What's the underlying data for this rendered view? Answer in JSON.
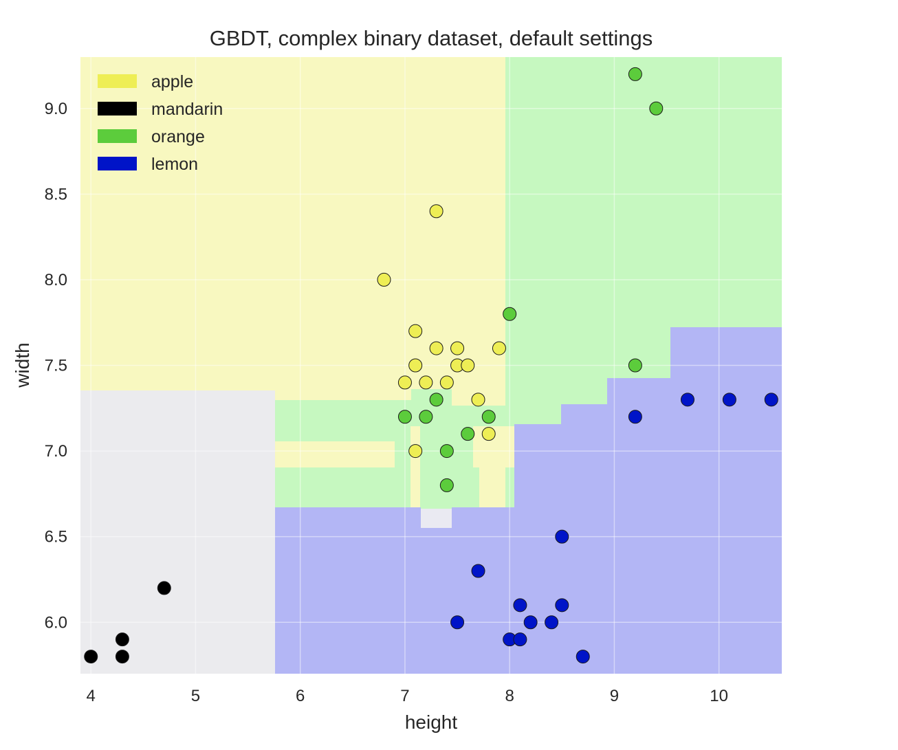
{
  "chart_data": {
    "type": "scatter",
    "title": "GBDT, complex binary dataset, default settings",
    "xlabel": "height",
    "ylabel": "width",
    "xlim": [
      3.9,
      10.6
    ],
    "ylim": [
      5.7,
      9.3
    ],
    "xticks": [
      "4",
      "5",
      "6",
      "7",
      "8",
      "9",
      "10"
    ],
    "yticks": [
      "6.0",
      "6.5",
      "7.0",
      "7.5",
      "8.0",
      "8.5",
      "9.0"
    ],
    "grid": true,
    "legend_position": "top-left",
    "background_regions": "decision regions of the classifier",
    "series": [
      {
        "name": "apple",
        "color": "#eeee55",
        "points": [
          [
            6.8,
            8.0
          ],
          [
            7.3,
            8.4
          ],
          [
            7.1,
            7.7
          ],
          [
            7.1,
            7.5
          ],
          [
            7.0,
            7.4
          ],
          [
            7.2,
            7.4
          ],
          [
            7.3,
            7.6
          ],
          [
            7.4,
            7.4
          ],
          [
            7.5,
            7.6
          ],
          [
            7.5,
            7.5
          ],
          [
            7.6,
            7.5
          ],
          [
            7.7,
            7.3
          ],
          [
            7.9,
            7.6
          ],
          [
            7.8,
            7.1
          ],
          [
            7.1,
            7.0
          ]
        ]
      },
      {
        "name": "mandarin",
        "color": "#000000",
        "points": [
          [
            4.0,
            5.8
          ],
          [
            4.3,
            5.8
          ],
          [
            4.3,
            5.9
          ],
          [
            4.7,
            6.2
          ]
        ]
      },
      {
        "name": "orange",
        "color": "#5ccc3c",
        "points": [
          [
            9.2,
            9.2
          ],
          [
            9.4,
            9.0
          ],
          [
            8.0,
            7.8
          ],
          [
            9.2,
            7.5
          ],
          [
            7.3,
            7.3
          ],
          [
            7.0,
            7.2
          ],
          [
            7.2,
            7.2
          ],
          [
            7.8,
            7.2
          ],
          [
            7.6,
            7.1
          ],
          [
            7.4,
            7.0
          ],
          [
            7.4,
            6.8
          ]
        ]
      },
      {
        "name": "lemon",
        "color": "#0014c8",
        "points": [
          [
            9.2,
            7.2
          ],
          [
            9.7,
            7.3
          ],
          [
            10.1,
            7.3
          ],
          [
            10.5,
            7.3
          ],
          [
            8.5,
            6.5
          ],
          [
            7.7,
            6.3
          ],
          [
            8.1,
            6.1
          ],
          [
            8.5,
            6.1
          ],
          [
            7.5,
            6.0
          ],
          [
            8.2,
            6.0
          ],
          [
            8.4,
            6.0
          ],
          [
            8.0,
            5.9
          ],
          [
            8.1,
            5.9
          ],
          [
            8.7,
            5.8
          ]
        ]
      }
    ]
  }
}
